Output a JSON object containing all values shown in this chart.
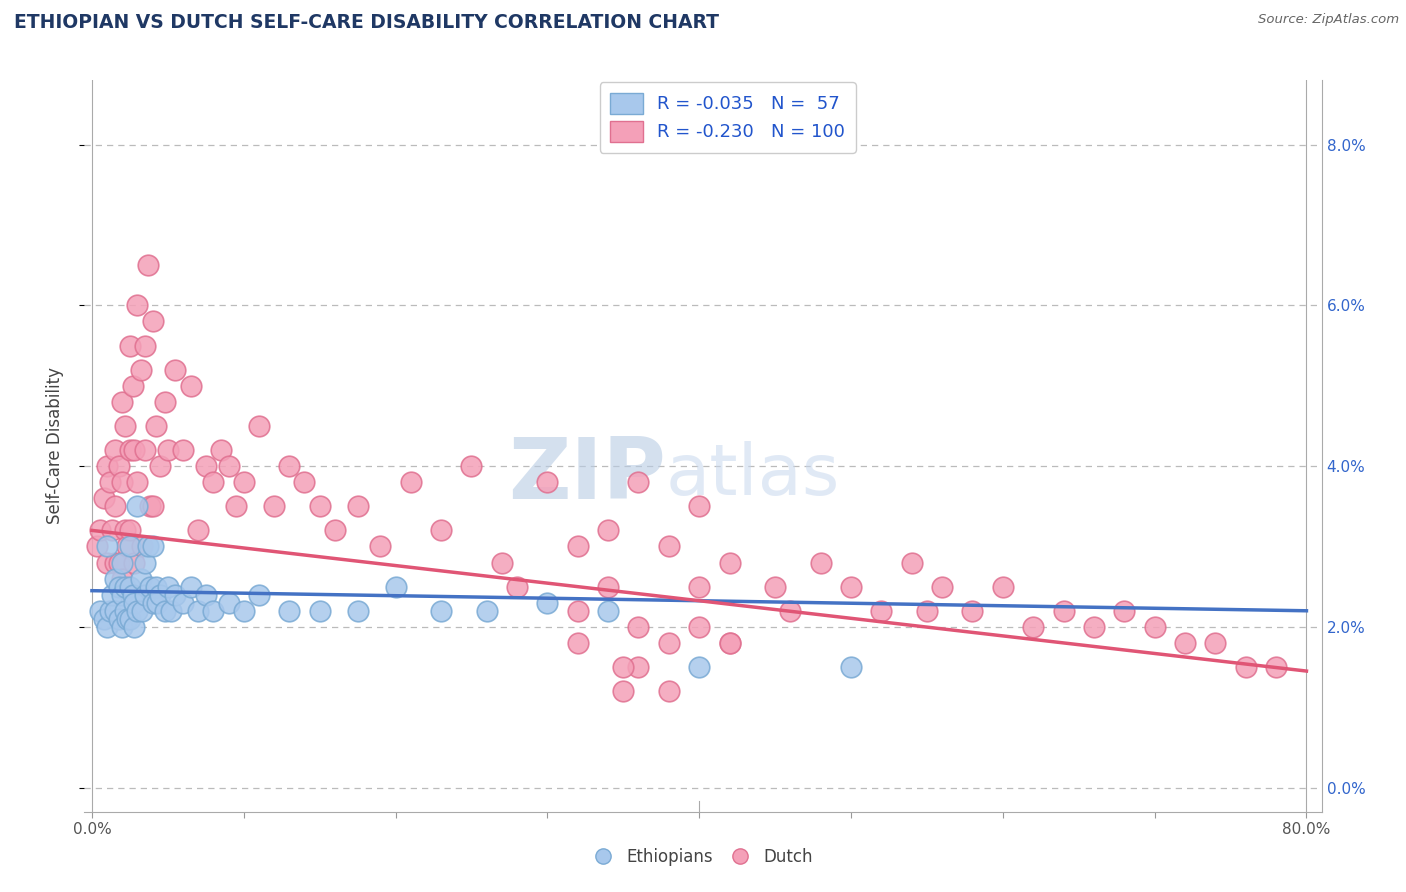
{
  "title": "ETHIOPIAN VS DUTCH SELF-CARE DISABILITY CORRELATION CHART",
  "source": "Source: ZipAtlas.com",
  "ylabel": "Self-Care Disability",
  "xlim": [
    -0.005,
    0.81
  ],
  "ylim": [
    -0.003,
    0.088
  ],
  "plot_xlim": [
    0.0,
    0.8
  ],
  "plot_ylim": [
    0.0,
    0.085
  ],
  "xticks": [
    0.0,
    0.1,
    0.2,
    0.3,
    0.4,
    0.5,
    0.6,
    0.7,
    0.8
  ],
  "xticklabels": [
    "0.0%",
    "",
    "",
    "",
    "",
    "",
    "",
    "",
    "80.0%"
  ],
  "yticks": [
    0.0,
    0.02,
    0.04,
    0.06,
    0.08
  ],
  "yticklabels": [
    "0.0%",
    "2.0%",
    "4.0%",
    "6.0%",
    "8.0%"
  ],
  "ethiopian_color": "#A8C8EC",
  "dutch_color": "#F4A0B8",
  "ethiopian_edge_color": "#7AAAD4",
  "dutch_edge_color": "#E07090",
  "ethiopian_line_color": "#4472C4",
  "dutch_line_color": "#E05575",
  "R_ethiopian": -0.035,
  "N_ethiopian": 57,
  "R_dutch": -0.23,
  "N_dutch": 100,
  "watermark_zip": "ZIP",
  "watermark_atlas": "atlas",
  "background_color": "#FFFFFF",
  "grid_color": "#BBBBBB",
  "title_color": "#1F3864",
  "legend_text_color": "#2255CC",
  "eth_line_start_y": 0.0245,
  "eth_line_end_y": 0.022,
  "dutch_line_start_y": 0.032,
  "dutch_line_end_y": 0.0145,
  "ethiopian_points_x": [
    0.005,
    0.008,
    0.01,
    0.01,
    0.012,
    0.013,
    0.015,
    0.015,
    0.018,
    0.018,
    0.02,
    0.02,
    0.02,
    0.022,
    0.022,
    0.023,
    0.025,
    0.025,
    0.025,
    0.027,
    0.028,
    0.028,
    0.03,
    0.03,
    0.032,
    0.033,
    0.035,
    0.035,
    0.037,
    0.038,
    0.04,
    0.04,
    0.042,
    0.043,
    0.045,
    0.048,
    0.05,
    0.052,
    0.055,
    0.06,
    0.065,
    0.07,
    0.075,
    0.08,
    0.09,
    0.1,
    0.11,
    0.13,
    0.15,
    0.175,
    0.2,
    0.23,
    0.26,
    0.3,
    0.34,
    0.4,
    0.5
  ],
  "ethiopian_points_y": [
    0.022,
    0.021,
    0.03,
    0.02,
    0.022,
    0.024,
    0.026,
    0.022,
    0.025,
    0.021,
    0.028,
    0.024,
    0.02,
    0.025,
    0.022,
    0.021,
    0.03,
    0.025,
    0.021,
    0.024,
    0.023,
    0.02,
    0.035,
    0.022,
    0.026,
    0.022,
    0.028,
    0.024,
    0.03,
    0.025,
    0.03,
    0.023,
    0.025,
    0.023,
    0.024,
    0.022,
    0.025,
    0.022,
    0.024,
    0.023,
    0.025,
    0.022,
    0.024,
    0.022,
    0.023,
    0.022,
    0.024,
    0.022,
    0.022,
    0.022,
    0.025,
    0.022,
    0.022,
    0.023,
    0.022,
    0.015,
    0.015
  ],
  "dutch_points_x": [
    0.003,
    0.005,
    0.008,
    0.01,
    0.01,
    0.012,
    0.013,
    0.015,
    0.015,
    0.015,
    0.018,
    0.018,
    0.02,
    0.02,
    0.02,
    0.022,
    0.022,
    0.023,
    0.025,
    0.025,
    0.025,
    0.027,
    0.028,
    0.028,
    0.03,
    0.03,
    0.032,
    0.033,
    0.035,
    0.035,
    0.037,
    0.038,
    0.04,
    0.04,
    0.042,
    0.045,
    0.048,
    0.05,
    0.055,
    0.06,
    0.065,
    0.07,
    0.075,
    0.08,
    0.085,
    0.09,
    0.095,
    0.1,
    0.11,
    0.12,
    0.13,
    0.14,
    0.15,
    0.16,
    0.175,
    0.19,
    0.21,
    0.23,
    0.25,
    0.27,
    0.3,
    0.32,
    0.34,
    0.36,
    0.38,
    0.4,
    0.42,
    0.45,
    0.48,
    0.5,
    0.52,
    0.54,
    0.55,
    0.56,
    0.58,
    0.6,
    0.62,
    0.64,
    0.66,
    0.68,
    0.7,
    0.72,
    0.74,
    0.76,
    0.78,
    0.28,
    0.32,
    0.35,
    0.38,
    0.4,
    0.42,
    0.46,
    0.36,
    0.38,
    0.32,
    0.34,
    0.36,
    0.4,
    0.35,
    0.42
  ],
  "dutch_points_y": [
    0.03,
    0.032,
    0.036,
    0.04,
    0.028,
    0.038,
    0.032,
    0.042,
    0.035,
    0.028,
    0.04,
    0.028,
    0.048,
    0.038,
    0.026,
    0.045,
    0.032,
    0.03,
    0.055,
    0.042,
    0.032,
    0.05,
    0.042,
    0.028,
    0.06,
    0.038,
    0.052,
    0.03,
    0.055,
    0.042,
    0.065,
    0.035,
    0.058,
    0.035,
    0.045,
    0.04,
    0.048,
    0.042,
    0.052,
    0.042,
    0.05,
    0.032,
    0.04,
    0.038,
    0.042,
    0.04,
    0.035,
    0.038,
    0.045,
    0.035,
    0.04,
    0.038,
    0.035,
    0.032,
    0.035,
    0.03,
    0.038,
    0.032,
    0.04,
    0.028,
    0.038,
    0.03,
    0.032,
    0.038,
    0.03,
    0.035,
    0.028,
    0.025,
    0.028,
    0.025,
    0.022,
    0.028,
    0.022,
    0.025,
    0.022,
    0.025,
    0.02,
    0.022,
    0.02,
    0.022,
    0.02,
    0.018,
    0.018,
    0.015,
    0.015,
    0.025,
    0.022,
    0.012,
    0.012,
    0.025,
    0.018,
    0.022,
    0.015,
    0.018,
    0.018,
    0.025,
    0.02,
    0.02,
    0.015,
    0.018
  ]
}
